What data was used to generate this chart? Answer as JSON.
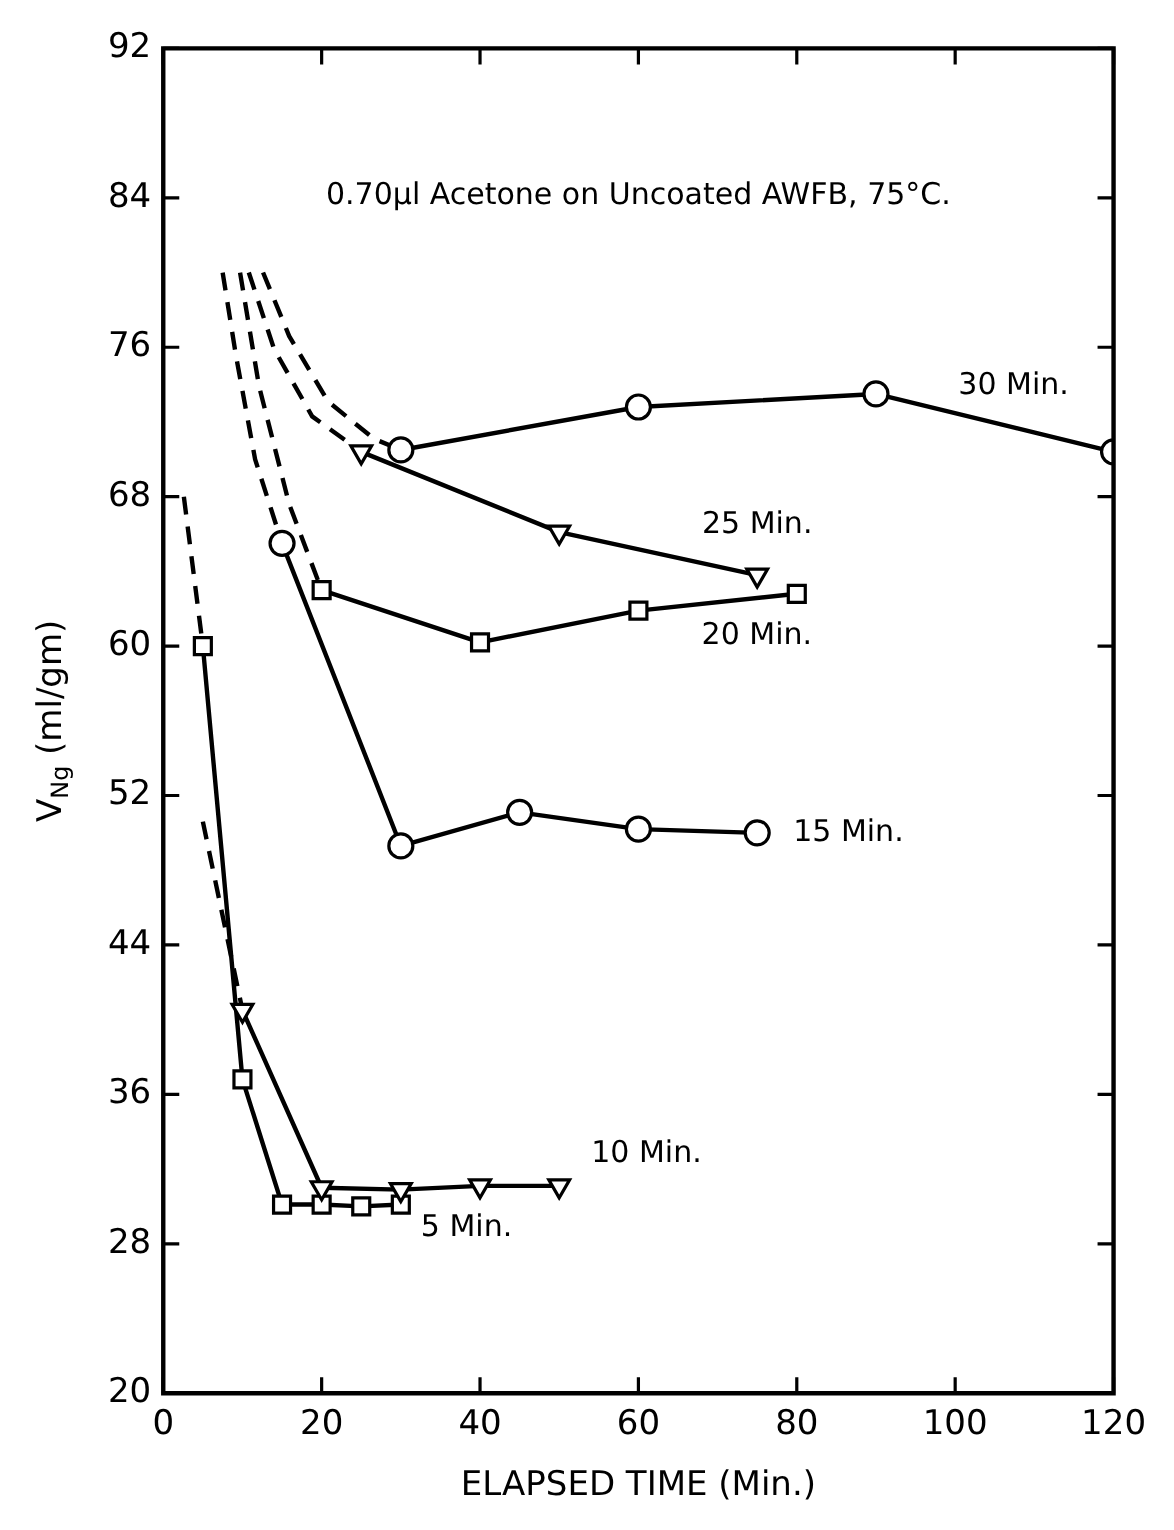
{
  "chart_data": {
    "type": "line",
    "title": "0.70µl Acetone on Uncoated AWFB, 75°C.",
    "xlabel": "ELAPSED TIME (Min.)",
    "ylabel": "V$_{Ng}$ (ml/gm)",
    "xlim": [
      0,
      120
    ],
    "xticks": [
      0,
      20,
      40,
      60,
      80,
      100,
      120
    ],
    "ylim": [
      20,
      92
    ],
    "yticks": [
      20,
      28,
      36,
      44,
      52,
      60,
      68,
      76,
      84,
      92
    ],
    "grid": false,
    "legend": false,
    "series": [
      {
        "name": "30 Min.",
        "color": "#000000",
        "marker": "circle",
        "x": [
          30,
          60,
          90,
          120
        ],
        "values": [
          70.5,
          72.8,
          73.5,
          70.4
        ]
      },
      {
        "name": "25 Min.",
        "color": "#000000",
        "marker": "triangle",
        "x": [
          25,
          50,
          75
        ],
        "values": [
          70.4,
          66.1,
          63.8
        ]
      },
      {
        "name": "20 Min.",
        "color": "#000000",
        "marker": "square",
        "x": [
          20,
          40,
          60,
          80
        ],
        "values": [
          63,
          60.2,
          61.9,
          62.8
        ]
      },
      {
        "name": "15 Min.",
        "color": "#000000",
        "marker": "circle",
        "x": [
          15,
          30,
          45,
          60,
          75
        ],
        "values": [
          65.5,
          49.3,
          51.1,
          50.2,
          50
        ]
      },
      {
        "name": "10 Min.",
        "color": "#000000",
        "marker": "triangle",
        "x": [
          10,
          20,
          30,
          40,
          50
        ],
        "values": [
          40.5,
          31,
          30.9,
          31.1,
          31.1
        ]
      },
      {
        "name": "5 Min.",
        "color": "#000000",
        "marker": "square",
        "x": [
          5,
          10,
          15,
          20,
          25,
          30
        ],
        "values": [
          60,
          36.8,
          30.1,
          30.1,
          30,
          30.1
        ]
      },
      {
        "color": "#000000",
        "marker": "none",
        "line_style": "dashed",
        "x": [
          12.6,
          15.9,
          20.8,
          26.6,
          30
        ],
        "values": [
          80,
          76.6,
          73.1,
          71.1,
          70.5
        ]
      },
      {
        "color": "#000000",
        "marker": "none",
        "line_style": "dashed",
        "x": [
          10.8,
          14,
          18.8,
          25
        ],
        "values": [
          80,
          75.9,
          72.3,
          70.4
        ]
      },
      {
        "color": "#000000",
        "marker": "none",
        "line_style": "dashed",
        "x": [
          9.7,
          12.1,
          15.9,
          20
        ],
        "values": [
          80,
          73.9,
          67.6,
          63
        ]
      },
      {
        "color": "#000000",
        "marker": "none",
        "line_style": "dashed",
        "x": [
          7.5,
          9.2,
          11.6,
          15
        ],
        "values": [
          80,
          75.5,
          70,
          65.5
        ]
      },
      {
        "color": "#000000",
        "marker": "none",
        "line_style": "dashed",
        "x": [
          5,
          10
        ],
        "values": [
          50.6,
          40.5
        ]
      },
      {
        "color": "#000000",
        "marker": "none",
        "line_style": "dashed",
        "x": [
          2.6,
          5
        ],
        "values": [
          68,
          60
        ]
      }
    ]
  }
}
